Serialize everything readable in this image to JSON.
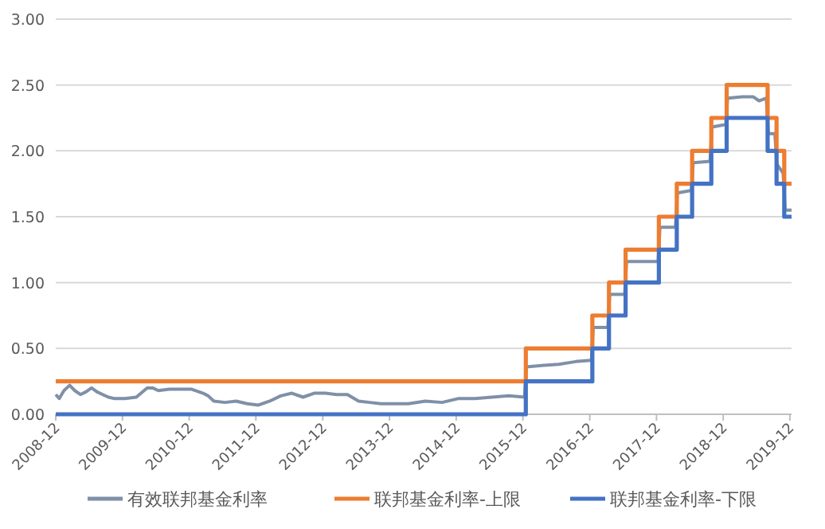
{
  "chart_data": {
    "type": "line",
    "ylim": [
      0,
      3
    ],
    "yticks": [
      {
        "value": 0,
        "label": "0.00"
      },
      {
        "value": 0.5,
        "label": "0.50"
      },
      {
        "value": 1,
        "label": "1.00"
      },
      {
        "value": 1.5,
        "label": "1.50"
      },
      {
        "value": 2,
        "label": "2.00"
      },
      {
        "value": 2.5,
        "label": "2.50"
      },
      {
        "value": 3,
        "label": "3.00"
      }
    ],
    "xlim": [
      "2008-12-01",
      "2019-12-10"
    ],
    "xticks": [
      "2008-12",
      "2009-12",
      "2010-12",
      "2011-12",
      "2012-12",
      "2013-12",
      "2014-12",
      "2015-12",
      "2016-12",
      "2017-12",
      "2018-12",
      "2019-12"
    ],
    "grid": "y",
    "legend": "bottom",
    "marker": "none",
    "line_style": "solid",
    "series": [
      {
        "name": "有效联邦基金利率",
        "color": "#7f90a8",
        "type": "line",
        "x": [
          "2008-12-01",
          "2008-12-20",
          "2009-01-15",
          "2009-02-15",
          "2009-03-15",
          "2009-04-15",
          "2009-05-15",
          "2009-06-15",
          "2009-07-15",
          "2009-08-15",
          "2009-09-15",
          "2009-10-15",
          "2009-11-15",
          "2009-12-15",
          "2010-02-15",
          "2010-04-15",
          "2010-05-15",
          "2010-06-15",
          "2010-08-15",
          "2010-10-15",
          "2010-12-15",
          "2011-02-15",
          "2011-03-15",
          "2011-04-15",
          "2011-06-15",
          "2011-08-15",
          "2011-10-15",
          "2011-12-15",
          "2012-02-15",
          "2012-04-15",
          "2012-06-15",
          "2012-08-15",
          "2012-10-15",
          "2012-12-15",
          "2013-02-15",
          "2013-04-15",
          "2013-06-15",
          "2013-08-15",
          "2013-10-15",
          "2013-12-15",
          "2014-03-15",
          "2014-06-15",
          "2014-09-15",
          "2014-12-15",
          "2015-03-15",
          "2015-06-15",
          "2015-09-15",
          "2015-12-10",
          "2015-12-20",
          "2016-03-15",
          "2016-06-15",
          "2016-09-15",
          "2016-12-10",
          "2016-12-20",
          "2017-03-10",
          "2017-03-20",
          "2017-06-10",
          "2017-06-20",
          "2017-09-15",
          "2017-12-10",
          "2017-12-20",
          "2018-03-15",
          "2018-03-25",
          "2018-06-10",
          "2018-06-20",
          "2018-09-20",
          "2018-09-30",
          "2018-12-15",
          "2018-12-25",
          "2019-03-15",
          "2019-05-15",
          "2019-06-15",
          "2019-07-25",
          "2019-08-05",
          "2019-09-10",
          "2019-09-20",
          "2019-10-25",
          "2019-11-05",
          "2019-12-10"
        ],
        "values": [
          0.15,
          0.12,
          0.18,
          0.22,
          0.18,
          0.15,
          0.17,
          0.2,
          0.17,
          0.15,
          0.13,
          0.12,
          0.12,
          0.12,
          0.13,
          0.2,
          0.2,
          0.18,
          0.19,
          0.19,
          0.19,
          0.16,
          0.14,
          0.1,
          0.09,
          0.1,
          0.08,
          0.07,
          0.1,
          0.14,
          0.16,
          0.13,
          0.16,
          0.16,
          0.15,
          0.15,
          0.1,
          0.09,
          0.08,
          0.08,
          0.08,
          0.1,
          0.09,
          0.12,
          0.12,
          0.13,
          0.14,
          0.13,
          0.36,
          0.37,
          0.38,
          0.4,
          0.41,
          0.66,
          0.66,
          0.91,
          0.91,
          1.16,
          1.16,
          1.16,
          1.42,
          1.42,
          1.68,
          1.7,
          1.91,
          1.92,
          2.18,
          2.2,
          2.4,
          2.41,
          2.41,
          2.38,
          2.4,
          2.13,
          2.13,
          1.9,
          1.83,
          1.55,
          1.55
        ]
      },
      {
        "name": "联邦基金利率-上限",
        "color": "#ed7d31",
        "type": "step",
        "x": [
          "2008-12-01",
          "2015-12-17",
          "2016-12-15",
          "2017-03-16",
          "2017-06-15",
          "2017-12-14",
          "2018-03-22",
          "2018-06-14",
          "2018-09-27",
          "2018-12-20",
          "2019-08-01",
          "2019-09-19",
          "2019-10-31",
          "2019-12-10"
        ],
        "values": [
          0.25,
          0.5,
          0.75,
          1.0,
          1.25,
          1.5,
          1.75,
          2.0,
          2.25,
          2.5,
          2.25,
          2.0,
          1.75,
          1.75
        ]
      },
      {
        "name": "联邦基金利率-下限",
        "color": "#4472c4",
        "type": "step",
        "x": [
          "2008-12-01",
          "2015-12-17",
          "2016-12-15",
          "2017-03-16",
          "2017-06-15",
          "2017-12-14",
          "2018-03-22",
          "2018-06-14",
          "2018-09-27",
          "2018-12-20",
          "2019-08-01",
          "2019-09-19",
          "2019-10-31",
          "2019-12-10"
        ],
        "values": [
          0,
          0.25,
          0.5,
          0.75,
          1.0,
          1.25,
          1.5,
          1.75,
          2.0,
          2.25,
          2.0,
          1.75,
          1.5,
          1.5
        ]
      }
    ]
  }
}
